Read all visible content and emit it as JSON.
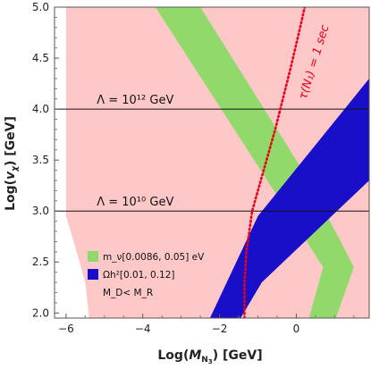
{
  "chart_data": {
    "type": "area",
    "x_axis": {
      "label": "Log(M_N3) [GeV]",
      "range": [
        -6.3,
        1.9
      ],
      "ticks": [
        -6,
        -4,
        -2,
        0
      ],
      "tick_labels": [
        "−6",
        "−4",
        "−2",
        "0"
      ]
    },
    "y_axis": {
      "label": "Log(v_χ) [GeV]",
      "range": [
        1.95,
        5.0
      ],
      "ticks": [
        2.0,
        2.5,
        3.0,
        3.5,
        4.0,
        4.5,
        5.0
      ],
      "tick_labels": [
        "2.0",
        "2.5",
        "3.0",
        "3.5",
        "4.0",
        "4.5",
        "5.0"
      ]
    },
    "regions": [
      {
        "name": "M_D < M_R",
        "color": "#ffc8c8",
        "polygon": [
          [
            -6.0,
            5.0
          ],
          [
            1.9,
            5.0
          ],
          [
            1.9,
            1.95
          ],
          [
            -5.4,
            1.95
          ],
          [
            -5.5,
            2.3
          ],
          [
            -5.8,
            2.7
          ],
          [
            -6.0,
            2.95
          ]
        ]
      },
      {
        "name": "m_ν[0.0086, 0.05] eV",
        "color": "#90d96a",
        "polygon": [
          [
            -3.67,
            5.0
          ],
          [
            -0.5,
            3.15
          ],
          [
            0.7,
            2.45
          ],
          [
            0.33,
            1.95
          ],
          [
            1.03,
            1.95
          ],
          [
            1.5,
            2.45
          ],
          [
            0.33,
            3.3
          ],
          [
            -2.5,
            5.0
          ]
        ]
      },
      {
        "name": "Ωh²[0.01, 0.12]",
        "color": "#1a0fc8",
        "polygon": [
          [
            -2.25,
            1.95
          ],
          [
            -1.0,
            2.95
          ],
          [
            1.9,
            4.3
          ],
          [
            1.9,
            3.3
          ],
          [
            -0.9,
            2.3
          ],
          [
            -1.45,
            1.95
          ]
        ]
      }
    ],
    "curves": [
      {
        "name": "τ(N1) = 1 sec",
        "color": "#e8001a",
        "style": "dotted",
        "points": [
          [
            -1.35,
            1.95
          ],
          [
            -1.35,
            2.3
          ],
          [
            -1.3,
            2.6
          ],
          [
            -1.15,
            3.0
          ],
          [
            -0.85,
            3.4
          ],
          [
            -0.55,
            3.8
          ],
          [
            -0.35,
            4.1
          ],
          [
            -0.15,
            4.4
          ],
          [
            0.1,
            4.8
          ],
          [
            0.22,
            5.0
          ]
        ]
      }
    ],
    "hlines": [
      {
        "y": 4.0,
        "label": "Λ = 10¹² GeV",
        "label_x": -5.2
      },
      {
        "y": 3.0,
        "label": "Λ = 10¹⁰ GeV",
        "label_x": -5.2
      }
    ],
    "annotation": {
      "text": "τ(N₁) = 1 sec",
      "x": 0.55,
      "y": 4.45,
      "rotation_deg": -73
    },
    "legend": {
      "position": "bottom-left",
      "items": [
        {
          "label": "m_ν[0.0086, 0.05] eV",
          "color": "#90d96a"
        },
        {
          "label": "Ωh²[0.01, 0.12]",
          "color": "#1a0fc8"
        },
        {
          "label": "M_D< M_R",
          "color": "#ffc8c8"
        }
      ]
    }
  }
}
